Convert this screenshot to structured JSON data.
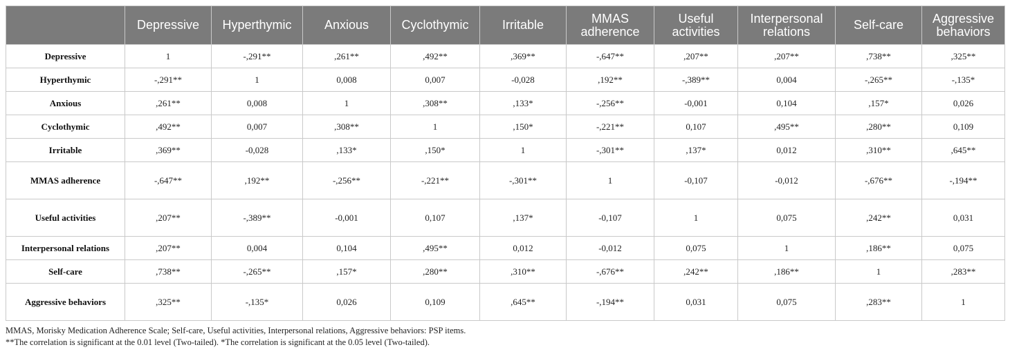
{
  "table": {
    "headers": [
      "",
      "Depressive",
      "Hyperthymic",
      "Anxious",
      "Cyclothymic",
      "Irritable",
      "MMAS adherence",
      "Useful activities",
      "Interpersonal relations",
      "Self-care",
      "Aggressive behaviors"
    ],
    "rows": [
      {
        "label": "Depressive",
        "cells": [
          "1",
          "-,291**",
          ",261**",
          ",492**",
          ",369**",
          "-,647**",
          ",207**",
          ",207**",
          ",738**",
          ",325**"
        ]
      },
      {
        "label": "Hyperthymic",
        "cells": [
          "-,291**",
          "1",
          "0,008",
          "0,007",
          "-0,028",
          ",192**",
          "-,389**",
          "0,004",
          "-,265**",
          "-,135*"
        ]
      },
      {
        "label": "Anxious",
        "cells": [
          ",261**",
          "0,008",
          "1",
          ",308**",
          ",133*",
          "-,256**",
          "-0,001",
          "0,104",
          ",157*",
          "0,026"
        ]
      },
      {
        "label": "Cyclothymic",
        "cells": [
          ",492**",
          "0,007",
          ",308**",
          "1",
          ",150*",
          "-,221**",
          "0,107",
          ",495**",
          ",280**",
          "0,109"
        ]
      },
      {
        "label": "Irritable",
        "cells": [
          ",369**",
          "-0,028",
          ",133*",
          ",150*",
          "1",
          "-,301**",
          ",137*",
          "0,012",
          ",310**",
          ",645**"
        ]
      },
      {
        "label": "MMAS adherence",
        "cells": [
          "-,647**",
          ",192**",
          "-,256**",
          "-,221**",
          "-,301**",
          "1",
          "-0,107",
          "-0,012",
          "-,676**",
          "-,194**"
        ]
      },
      {
        "label": "Useful activities",
        "cells": [
          ",207**",
          "-,389**",
          "-0,001",
          "0,107",
          ",137*",
          "-0,107",
          "1",
          "0,075",
          ",242**",
          "0,031"
        ]
      },
      {
        "label": "Interpersonal relations",
        "cells": [
          ",207**",
          "0,004",
          "0,104",
          ",495**",
          "0,012",
          "-0,012",
          "0,075",
          "1",
          ",186**",
          "0,075"
        ]
      },
      {
        "label": "Self-care",
        "cells": [
          ",738**",
          "-,265**",
          ",157*",
          ",280**",
          ",310**",
          "-,676**",
          ",242**",
          ",186**",
          "1",
          ",283**"
        ]
      },
      {
        "label": "Aggressive behaviors",
        "cells": [
          ",325**",
          "-,135*",
          "0,026",
          "0,109",
          ",645**",
          "-,194**",
          "0,031",
          "0,075",
          ",283**",
          "1"
        ]
      }
    ]
  },
  "notes": {
    "abbreviations": "MMAS, Morisky Medication Adherence Scale; Self-care, Useful activities, Interpersonal relations, Aggressive behaviors: PSP items.",
    "significance": "**The correlation is significant at the 0.01 level (Two-tailed). *The correlation is significant at the 0.05 level (Two-tailed)."
  },
  "colors": {
    "header_bg": "#7b7b7b",
    "header_text": "#ffffff",
    "border": "#c9c9c9"
  }
}
